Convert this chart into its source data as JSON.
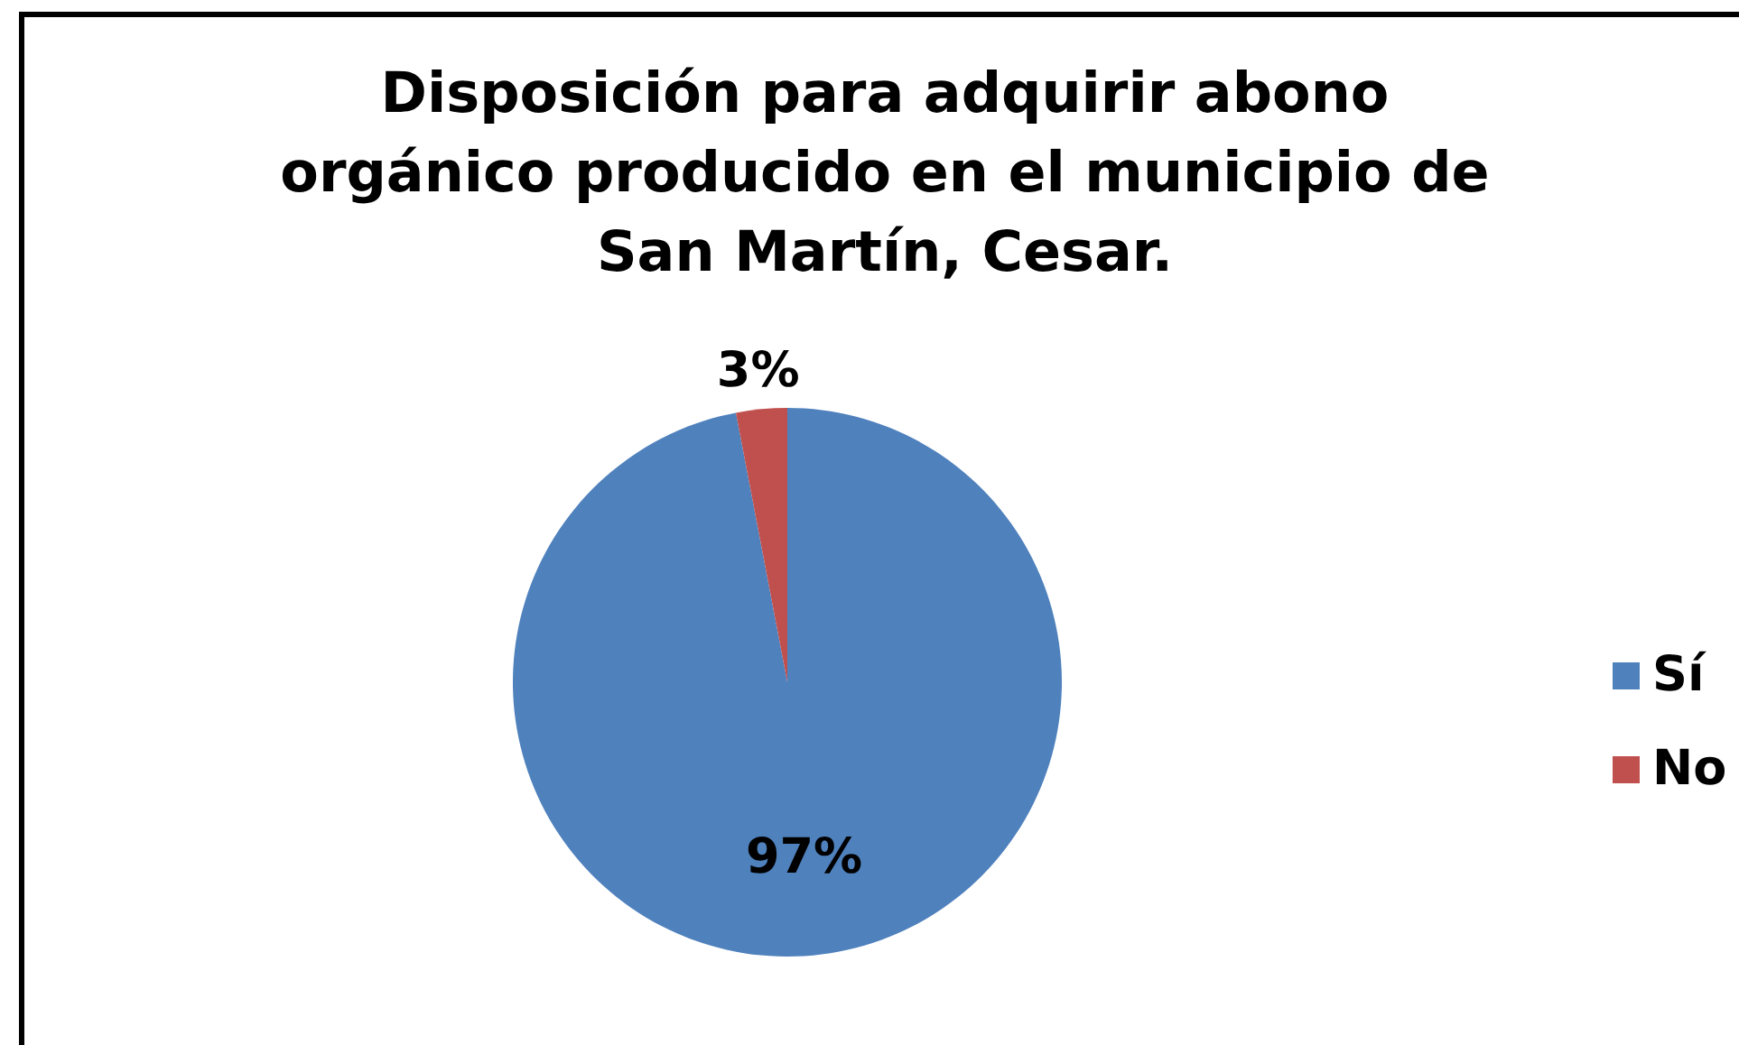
{
  "chart_data": {
    "type": "pie",
    "title": "Disposición para adquirir abono orgánico producido en el municipio de San Martín, Cesar.",
    "categories": [
      "Sí",
      "No"
    ],
    "values": [
      97,
      3
    ],
    "colors": [
      "#4f81bd",
      "#c0504d"
    ],
    "value_labels": [
      "97%",
      "3%"
    ],
    "legend": "right"
  }
}
